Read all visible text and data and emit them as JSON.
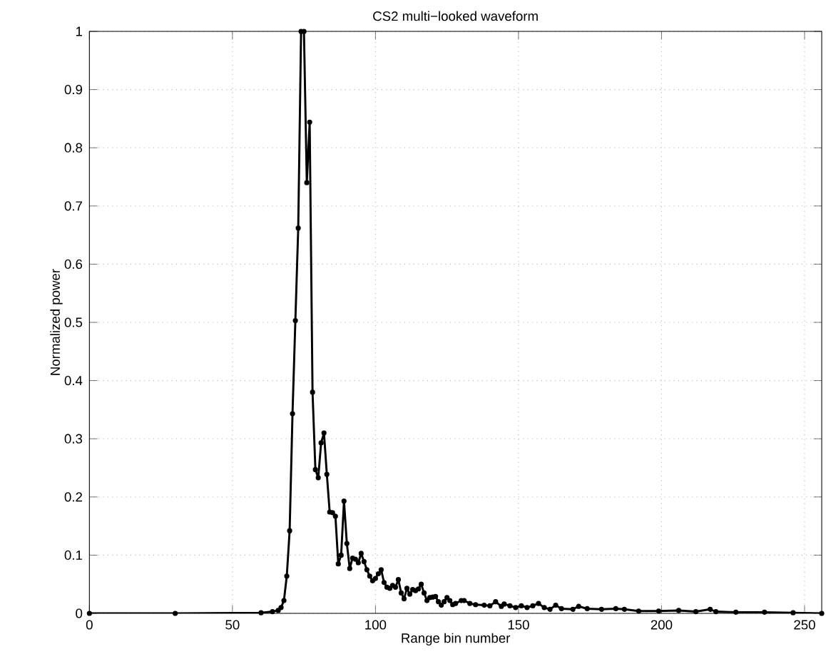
{
  "chart_data": {
    "type": "line",
    "title": "CS2 multi−looked waveform",
    "xlabel": "Range bin number",
    "ylabel": "Normalized power",
    "xlim": [
      0,
      256
    ],
    "ylim": [
      0,
      1
    ],
    "xticks": [
      0,
      50,
      100,
      150,
      200,
      250
    ],
    "yticks": [
      0,
      0.1,
      0.2,
      0.3,
      0.4,
      0.5,
      0.6,
      0.7,
      0.8,
      0.9,
      1
    ],
    "grid": true,
    "marker": "circle",
    "line_style": "solid",
    "series": [
      {
        "color": "#000000",
        "x": [
          0,
          30,
          60,
          64,
          66,
          67,
          68,
          69,
          70,
          71,
          72,
          73,
          74,
          75,
          76,
          77,
          78,
          79,
          80,
          81,
          82,
          83,
          84,
          85,
          86,
          87,
          88,
          89,
          90,
          91,
          92,
          93,
          94,
          95,
          96,
          97,
          98,
          99,
          100,
          101,
          102,
          103,
          104,
          105,
          106,
          107,
          108,
          109,
          110,
          111,
          112,
          113,
          114,
          115,
          116,
          117,
          118,
          119,
          120,
          121,
          122,
          123,
          124,
          125,
          126,
          127,
          128,
          130,
          131,
          133,
          135,
          138,
          140,
          142,
          144,
          145,
          147,
          149,
          151,
          153,
          155,
          157,
          159,
          161,
          163,
          165,
          169,
          171,
          174,
          179,
          184,
          187,
          192,
          199,
          206,
          212,
          217,
          219,
          226,
          236,
          246,
          256
        ],
        "values": [
          0,
          0,
          0.001,
          0.003,
          0.005,
          0.01,
          0.022,
          0.064,
          0.142,
          0.343,
          0.503,
          0.662,
          1,
          1,
          0.74,
          0.844,
          0.38,
          0.247,
          0.233,
          0.293,
          0.31,
          0.239,
          0.174,
          0.173,
          0.167,
          0.085,
          0.1,
          0.193,
          0.12,
          0.077,
          0.095,
          0.093,
          0.087,
          0.103,
          0.089,
          0.075,
          0.064,
          0.056,
          0.06,
          0.068,
          0.075,
          0.053,
          0.045,
          0.043,
          0.048,
          0.045,
          0.058,
          0.035,
          0.025,
          0.043,
          0.033,
          0.041,
          0.039,
          0.042,
          0.05,
          0.035,
          0.022,
          0.027,
          0.028,
          0.029,
          0.02,
          0.014,
          0.02,
          0.027,
          0.022,
          0.015,
          0.017,
          0.022,
          0.022,
          0.017,
          0.015,
          0.014,
          0.013,
          0.02,
          0.012,
          0.016,
          0.013,
          0.01,
          0.013,
          0.01,
          0.013,
          0.017,
          0.01,
          0.007,
          0.014,
          0.008,
          0.007,
          0.012,
          0.008,
          0.007,
          0.008,
          0.007,
          0.004,
          0.004,
          0.005,
          0.003,
          0.007,
          0.003,
          0.002,
          0.002,
          0.001,
          0
        ]
      }
    ]
  }
}
